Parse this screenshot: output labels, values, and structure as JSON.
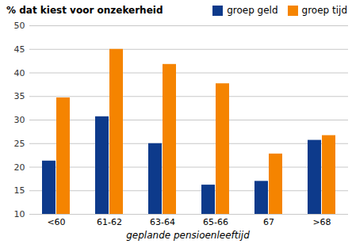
{
  "chart_data": {
    "type": "bar",
    "title": "% dat kiest voor onzekerheid",
    "x_label": "geplande pensioenleeftijd",
    "categories": [
      "<60",
      "61-62",
      "63-64",
      "65-66",
      "67",
      ">68"
    ],
    "series": [
      {
        "name": "groep geld",
        "color": "#0d3a8b",
        "values": [
          21.3,
          30.7,
          25.0,
          16.2,
          17.0,
          25.7
        ]
      },
      {
        "name": "groep tijd",
        "color": "#f58400",
        "values": [
          34.7,
          45.0,
          41.8,
          37.7,
          22.8,
          26.7
        ]
      }
    ],
    "ylim": [
      10,
      50
    ],
    "yticks": [
      10,
      15,
      20,
      25,
      30,
      35,
      40,
      45,
      50
    ],
    "grid": true,
    "legend": "top-right"
  }
}
